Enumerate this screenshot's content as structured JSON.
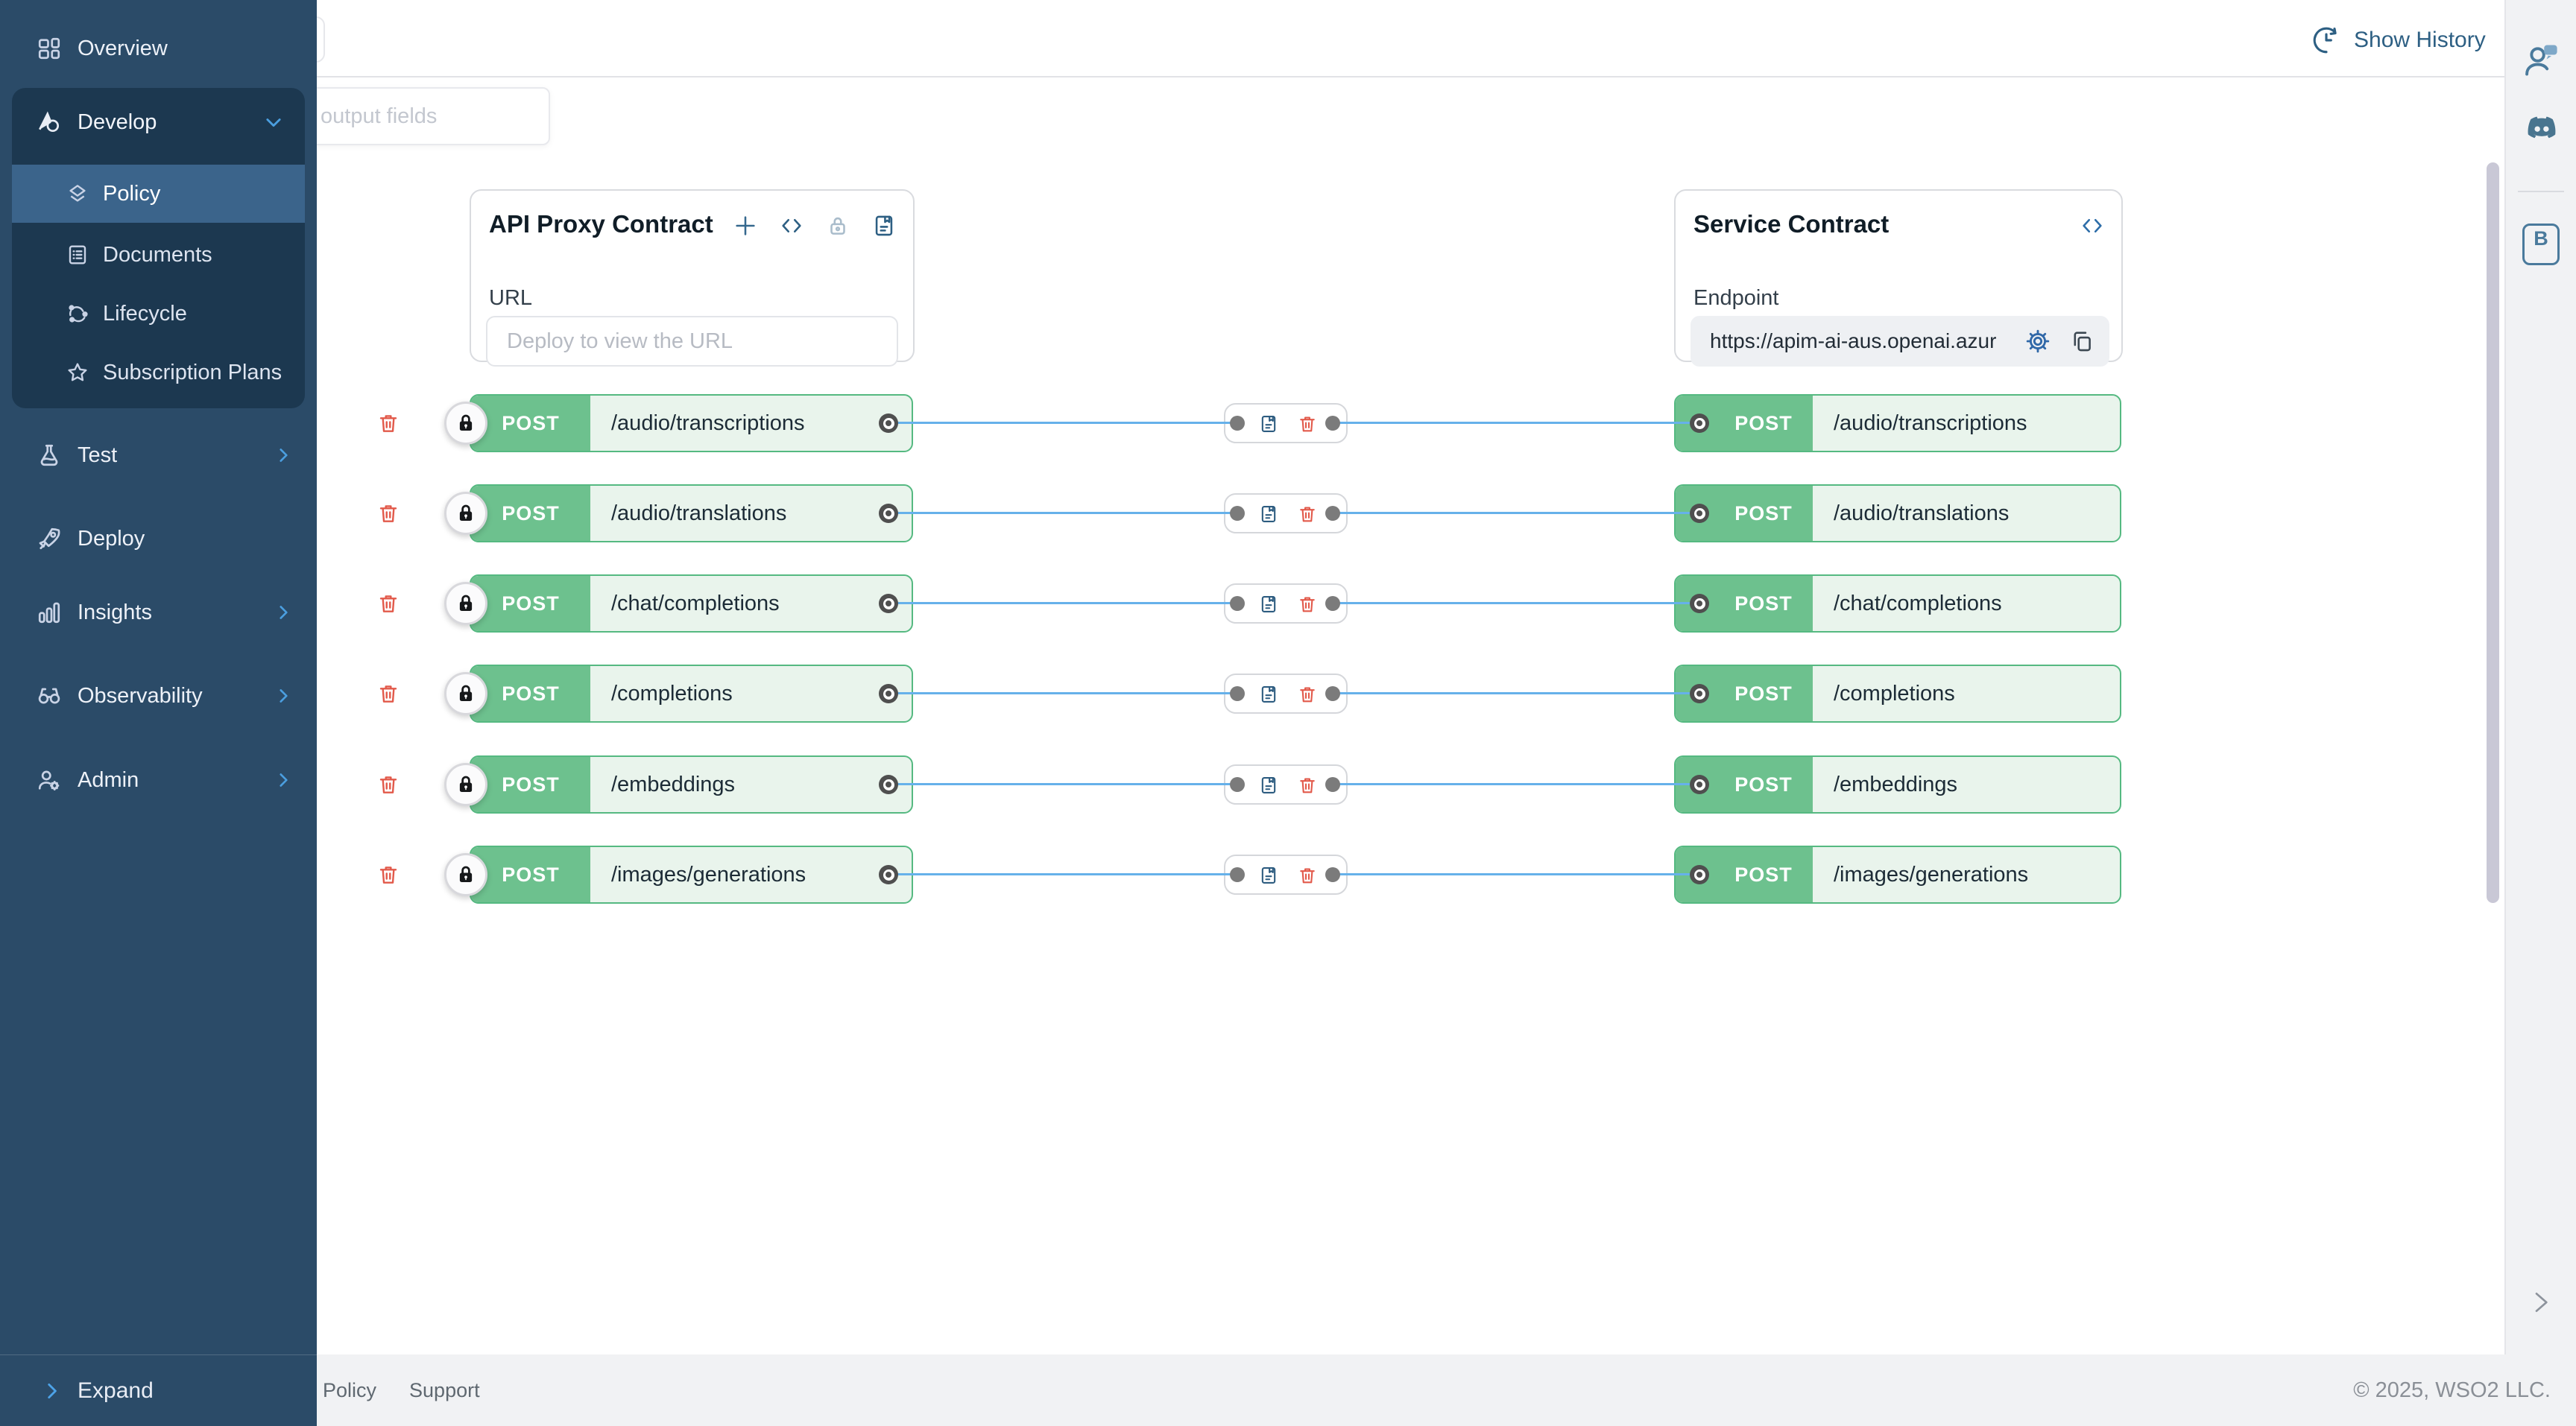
{
  "sidebar": {
    "items": [
      {
        "label": "Overview",
        "icon": "grid-icon"
      },
      {
        "label": "Develop",
        "icon": "develop-icon",
        "expanded": true,
        "children": [
          {
            "label": "Policy",
            "icon": "layers-icon",
            "selected": true
          },
          {
            "label": "Documents",
            "icon": "document-icon"
          },
          {
            "label": "Lifecycle",
            "icon": "lifecycle-icon"
          },
          {
            "label": "Subscription Plans",
            "icon": "star-icon"
          }
        ]
      },
      {
        "label": "Test",
        "icon": "flask-icon",
        "chevron": true
      },
      {
        "label": "Deploy",
        "icon": "rocket-icon",
        "chevron": false
      },
      {
        "label": "Insights",
        "icon": "bar-chart-icon",
        "chevron": true
      },
      {
        "label": "Observability",
        "icon": "binoculars-icon",
        "chevron": true
      },
      {
        "label": "Admin",
        "icon": "admin-gear-icon",
        "chevron": true
      }
    ],
    "expand_label": "Expand"
  },
  "header": {
    "show_history_label": "Show History",
    "show_history_icon": "history-clock-icon",
    "filter_placeholder": "output fields"
  },
  "proxy_card": {
    "title": "API Proxy Contract",
    "icons": [
      "add-icon",
      "code-icon",
      "lock-icon",
      "spec-icon"
    ],
    "url_label": "URL",
    "url_placeholder": "Deploy to view the URL"
  },
  "service_card": {
    "title": "Service Contract",
    "icons": [
      "code-icon"
    ],
    "endpoint_label": "Endpoint",
    "endpoint_value": "https://apim-ai-aus.openai.azur",
    "endpoint_icons": [
      "gear-icon",
      "copy-icon"
    ]
  },
  "endpoints": [
    {
      "method": "POST",
      "proxy_path": "/audio/transcriptions",
      "service_path": "/audio/transcriptions"
    },
    {
      "method": "POST",
      "proxy_path": "/audio/translations",
      "service_path": "/audio/translations"
    },
    {
      "method": "POST",
      "proxy_path": "/chat/completions",
      "service_path": "/chat/completions"
    },
    {
      "method": "POST",
      "proxy_path": "/completions",
      "service_path": "/completions"
    },
    {
      "method": "POST",
      "proxy_path": "/embeddings",
      "service_path": "/embeddings"
    },
    {
      "method": "POST",
      "proxy_path": "/images/generations",
      "service_path": "/images/generations"
    }
  ],
  "rail": {
    "icons": [
      "feedback-person-icon",
      "discord-icon",
      "docs-icon"
    ],
    "docs_badge": "B"
  },
  "footer": {
    "links": [
      {
        "label": "Policy"
      },
      {
        "label": "Support"
      }
    ],
    "copyright": "© 2025, WSO2 LLC."
  },
  "colors": {
    "sidebar_bg": "#2b4b68",
    "sidebar_group_bg": "#1c3850",
    "sidebar_selected_bg": "#3b648b",
    "method_green": "#6dc18e",
    "path_green": "#e9f4ec",
    "green_border": "#55b981",
    "connection_blue": "#66b1ea",
    "danger_red": "#e2594a",
    "accent_blue": "#2d5f83",
    "rail_bg": "#f1f2f4"
  }
}
